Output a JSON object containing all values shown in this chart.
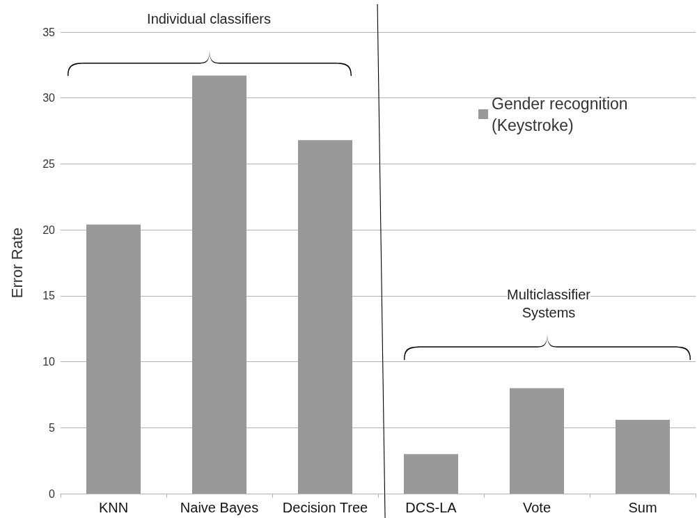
{
  "chart_data": {
    "type": "bar",
    "ylabel": "Error Rate",
    "categories": [
      "KNN",
      "Naive Bayes",
      "Decision Tree",
      "DCS-LA",
      "Vote",
      "Sum"
    ],
    "series": [
      {
        "name": "Gender recognition (Keystroke)",
        "color": "#999999",
        "values": [
          20.4,
          31.7,
          26.8,
          3.0,
          8.0,
          5.6
        ]
      }
    ],
    "ylim": [
      0,
      35
    ],
    "yticks": [
      0,
      5,
      10,
      15,
      20,
      25,
      30,
      35
    ],
    "grid": "y",
    "legend": "top right",
    "annotations": [
      "Individual classifiers",
      "Multiclassifier\nSystems"
    ]
  }
}
